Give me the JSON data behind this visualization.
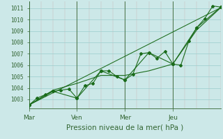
{
  "bg_color": "#cce8e8",
  "grid_color": "#99cccc",
  "line_color": "#1a6b1a",
  "axis_color": "#336633",
  "title": "Pression niveau de la mer( hPa )",
  "ylabel_ticks": [
    1003,
    1004,
    1005,
    1006,
    1007,
    1008,
    1009,
    1010,
    1011
  ],
  "ylim": [
    1002.2,
    1011.6
  ],
  "xlim": [
    0,
    96
  ],
  "xtick_positions": [
    0,
    24,
    48,
    72,
    96
  ],
  "xtick_labels": [
    "Mar",
    "Ven",
    "Mer",
    "Jeu",
    ""
  ],
  "series1_x": [
    0,
    4,
    8,
    12,
    16,
    20,
    24,
    28,
    32,
    36,
    40,
    44,
    48,
    52,
    56,
    60,
    64,
    68,
    72,
    76,
    80,
    84,
    88,
    92,
    96
  ],
  "series1_y": [
    1002.5,
    1003.1,
    1003.4,
    1003.7,
    1003.8,
    1003.9,
    1003.1,
    1004.2,
    1004.4,
    1005.5,
    1005.5,
    1005.0,
    1004.7,
    1005.2,
    1007.0,
    1007.1,
    1006.6,
    1007.2,
    1006.1,
    1006.0,
    1008.1,
    1009.3,
    1010.1,
    1011.2,
    1011.1
  ],
  "series2_x": [
    0,
    12,
    24,
    36,
    48,
    60,
    72,
    84,
    96
  ],
  "series2_y": [
    1002.5,
    1003.7,
    1003.1,
    1005.5,
    1004.7,
    1007.1,
    1006.1,
    1009.3,
    1011.1
  ],
  "series3_x": [
    0,
    12,
    24,
    36,
    48,
    60,
    72,
    84,
    96
  ],
  "series3_y": [
    1002.5,
    1003.8,
    1004.4,
    1005.1,
    1005.1,
    1005.5,
    1006.1,
    1009.1,
    1011.05
  ],
  "series4_x": [
    0,
    96
  ],
  "series4_y": [
    1002.5,
    1011.05
  ],
  "vlines_x": [
    0,
    24,
    48,
    72,
    96
  ],
  "minor_vlines_step": 6,
  "title_fontsize": 7.5,
  "tick_fontsize": 5.5
}
